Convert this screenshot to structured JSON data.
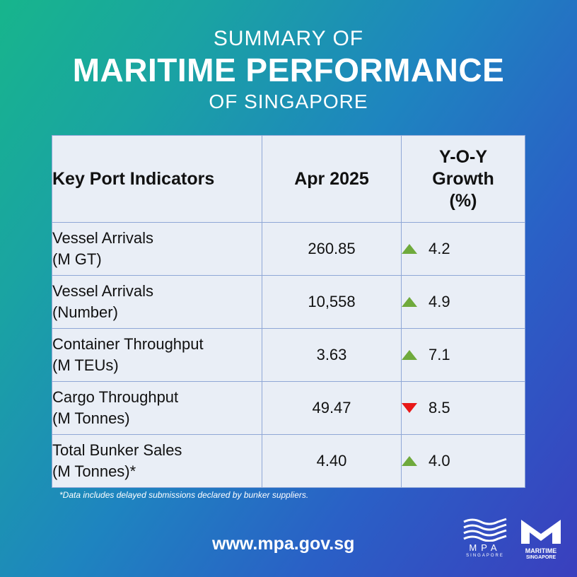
{
  "title": {
    "line1": "SUMMARY OF",
    "line2": "MARITIME PERFORMANCE",
    "line3": "OF SINGAPORE"
  },
  "table": {
    "headers": {
      "indicator": "Key Port Indicators",
      "period": "Apr 2025",
      "growth_line1": "Y-O-Y",
      "growth_line2": "Growth",
      "growth_line3": "(%)"
    },
    "rows": [
      {
        "label_line1": "Vessel Arrivals",
        "label_line2": "(M GT)",
        "value": "260.85",
        "growth": "4.2",
        "direction": "up"
      },
      {
        "label_line1": "Vessel Arrivals",
        "label_line2": "(Number)",
        "value": "10,558",
        "growth": "4.9",
        "direction": "up"
      },
      {
        "label_line1": "Container Throughput",
        "label_line2": "(M TEUs)",
        "value": "3.63",
        "growth": "7.1",
        "direction": "up"
      },
      {
        "label_line1": "Cargo Throughput",
        "label_line2": "(M Tonnes)",
        "value": "49.47",
        "growth": "8.5",
        "direction": "down"
      },
      {
        "label_line1": "Total Bunker Sales",
        "label_line2": "(M Tonnes)*",
        "value": "4.40",
        "growth": "4.0",
        "direction": "up"
      }
    ]
  },
  "footnote": "*Data includes delayed submissions declared by bunker suppliers.",
  "website": "www.mpa.gov.sg",
  "logos": {
    "mpa_name": "MPA",
    "mpa_sub": "SINGAPORE",
    "ms_name": "MARITIME",
    "ms_sub": "SINGAPORE"
  },
  "colors": {
    "up_arrow": "#6faa3c",
    "down_arrow": "#e81818",
    "table_bg": "#e9eef6",
    "table_border": "#8fa7d6"
  },
  "icons": {
    "up": "green-up-triangle-icon",
    "down": "red-down-triangle-icon"
  }
}
